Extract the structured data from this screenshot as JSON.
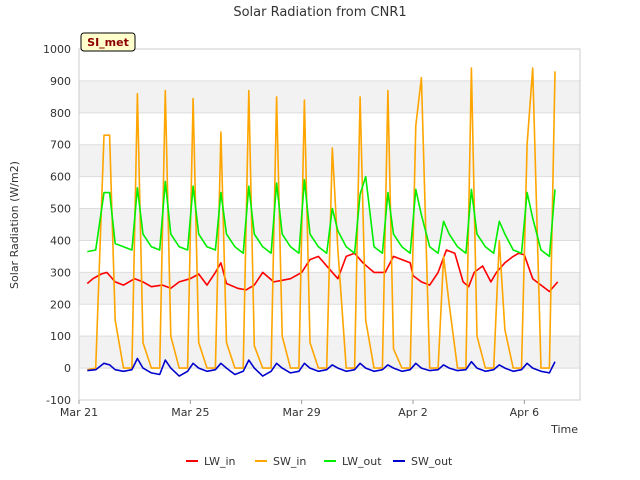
{
  "chart_data": {
    "type": "line",
    "title": "Solar Radiation from CNR1",
    "xlabel": "Time",
    "ylabel": "Solar Radiation (W/m2)",
    "ylim": [
      -100,
      1000
    ],
    "xlim": [
      0,
      18
    ],
    "yticks": [
      -100,
      0,
      100,
      200,
      300,
      400,
      500,
      600,
      700,
      800,
      900,
      1000
    ],
    "xticks": [
      {
        "label": "Mar 21",
        "day": 0
      },
      {
        "label": "Mar 25",
        "day": 4
      },
      {
        "label": "Mar 29",
        "day": 8
      },
      {
        "label": "Apr 2",
        "day": 12
      },
      {
        "label": "Apr 6",
        "day": 16
      }
    ],
    "grid": true,
    "legend_position": "bottom",
    "badge": "SI_met",
    "series": [
      {
        "name": "LW_in",
        "color": "#ff0000",
        "x": [
          0.3,
          0.5,
          0.8,
          1.0,
          1.3,
          1.6,
          2.0,
          2.3,
          2.6,
          3.0,
          3.3,
          3.6,
          4.0,
          4.3,
          4.6,
          4.9,
          5.1,
          5.3,
          5.7,
          6.0,
          6.3,
          6.6,
          7.0,
          7.3,
          7.6,
          8.0,
          8.3,
          8.6,
          9.0,
          9.3,
          9.6,
          9.9,
          10.2,
          10.6,
          11.0,
          11.3,
          11.6,
          11.9,
          12.0,
          12.3,
          12.6,
          12.9,
          13.2,
          13.5,
          13.8,
          14.0,
          14.2,
          14.5,
          14.8,
          15.0,
          15.3,
          15.6,
          15.8,
          16.0,
          16.3,
          16.6,
          16.9,
          17.2
        ],
        "values": [
          265,
          280,
          295,
          300,
          270,
          260,
          280,
          270,
          255,
          260,
          250,
          270,
          280,
          295,
          260,
          300,
          330,
          265,
          250,
          245,
          260,
          300,
          270,
          275,
          280,
          300,
          340,
          350,
          310,
          280,
          350,
          360,
          330,
          300,
          300,
          350,
          340,
          330,
          290,
          270,
          260,
          300,
          370,
          360,
          270,
          255,
          300,
          320,
          270,
          300,
          330,
          350,
          360,
          355,
          280,
          260,
          240,
          270
        ]
      },
      {
        "name": "SW_in",
        "color": "#ffa500",
        "x": [
          0.3,
          0.6,
          0.9,
          1.1,
          1.3,
          1.6,
          1.9,
          2.1,
          2.3,
          2.6,
          2.9,
          3.1,
          3.3,
          3.6,
          3.9,
          4.1,
          4.3,
          4.6,
          4.9,
          5.1,
          5.3,
          5.6,
          5.9,
          6.1,
          6.3,
          6.6,
          6.9,
          7.1,
          7.3,
          7.6,
          7.9,
          8.1,
          8.3,
          8.6,
          8.9,
          9.1,
          9.3,
          9.6,
          9.9,
          10.1,
          10.3,
          10.6,
          10.9,
          11.1,
          11.3,
          11.6,
          11.9,
          12.1,
          12.3,
          12.6,
          12.9,
          13.1,
          13.3,
          13.6,
          13.9,
          14.1,
          14.3,
          14.6,
          14.9,
          15.1,
          15.3,
          15.6,
          15.9,
          16.1,
          16.3,
          16.6,
          16.9,
          17.1
        ],
        "values": [
          -5,
          0,
          730,
          730,
          150,
          0,
          0,
          860,
          80,
          0,
          0,
          870,
          100,
          0,
          0,
          845,
          80,
          0,
          0,
          740,
          80,
          0,
          0,
          870,
          70,
          0,
          0,
          850,
          100,
          0,
          0,
          840,
          80,
          0,
          0,
          690,
          370,
          0,
          0,
          850,
          150,
          0,
          0,
          870,
          60,
          0,
          0,
          760,
          910,
          0,
          0,
          350,
          200,
          0,
          0,
          940,
          100,
          0,
          0,
          400,
          120,
          0,
          0,
          700,
          940,
          0,
          0,
          930
        ]
      },
      {
        "name": "LW_out",
        "color": "#00ee00",
        "x": [
          0.3,
          0.6,
          0.9,
          1.1,
          1.3,
          1.6,
          1.9,
          2.1,
          2.3,
          2.6,
          2.9,
          3.1,
          3.3,
          3.6,
          3.9,
          4.1,
          4.3,
          4.6,
          4.9,
          5.1,
          5.3,
          5.6,
          5.9,
          6.1,
          6.3,
          6.6,
          6.9,
          7.1,
          7.3,
          7.6,
          7.9,
          8.1,
          8.3,
          8.6,
          8.9,
          9.1,
          9.3,
          9.6,
          9.9,
          10.1,
          10.3,
          10.6,
          10.9,
          11.1,
          11.3,
          11.6,
          11.9,
          12.1,
          12.3,
          12.6,
          12.9,
          13.1,
          13.3,
          13.6,
          13.9,
          14.1,
          14.3,
          14.6,
          14.9,
          15.1,
          15.3,
          15.6,
          15.9,
          16.1,
          16.3,
          16.6,
          16.9,
          17.1
        ],
        "values": [
          365,
          370,
          550,
          550,
          390,
          380,
          370,
          565,
          420,
          380,
          370,
          585,
          420,
          380,
          370,
          570,
          420,
          380,
          370,
          550,
          420,
          380,
          360,
          570,
          420,
          380,
          360,
          580,
          420,
          380,
          360,
          590,
          420,
          380,
          360,
          500,
          430,
          380,
          360,
          545,
          600,
          380,
          360,
          550,
          420,
          380,
          360,
          560,
          480,
          380,
          360,
          460,
          420,
          380,
          360,
          560,
          420,
          380,
          360,
          460,
          420,
          370,
          360,
          550,
          470,
          370,
          350,
          560
        ]
      },
      {
        "name": "SW_out",
        "color": "#0000cc",
        "x": [
          0.3,
          0.6,
          0.9,
          1.1,
          1.3,
          1.6,
          1.9,
          2.1,
          2.3,
          2.6,
          2.9,
          3.1,
          3.3,
          3.6,
          3.9,
          4.1,
          4.3,
          4.6,
          4.9,
          5.1,
          5.3,
          5.6,
          5.9,
          6.1,
          6.3,
          6.6,
          6.9,
          7.1,
          7.3,
          7.6,
          7.9,
          8.1,
          8.3,
          8.6,
          8.9,
          9.1,
          9.3,
          9.6,
          9.9,
          10.1,
          10.3,
          10.6,
          10.9,
          11.1,
          11.3,
          11.6,
          11.9,
          12.1,
          12.3,
          12.6,
          12.9,
          13.1,
          13.3,
          13.6,
          13.9,
          14.1,
          14.3,
          14.6,
          14.9,
          15.1,
          15.3,
          15.6,
          15.9,
          16.1,
          16.3,
          16.6,
          16.9,
          17.1
        ],
        "values": [
          -8,
          -5,
          15,
          10,
          -5,
          -10,
          -5,
          30,
          0,
          -15,
          -20,
          25,
          0,
          -25,
          -10,
          15,
          0,
          -10,
          -5,
          15,
          0,
          -20,
          -10,
          25,
          0,
          -25,
          -10,
          15,
          0,
          -15,
          -10,
          15,
          0,
          -10,
          -5,
          10,
          0,
          -10,
          -5,
          15,
          0,
          -10,
          -5,
          10,
          0,
          -10,
          -5,
          15,
          0,
          -8,
          -5,
          10,
          0,
          -8,
          -5,
          20,
          0,
          -10,
          -5,
          10,
          0,
          -10,
          -5,
          15,
          0,
          -10,
          -15,
          20
        ]
      }
    ]
  }
}
